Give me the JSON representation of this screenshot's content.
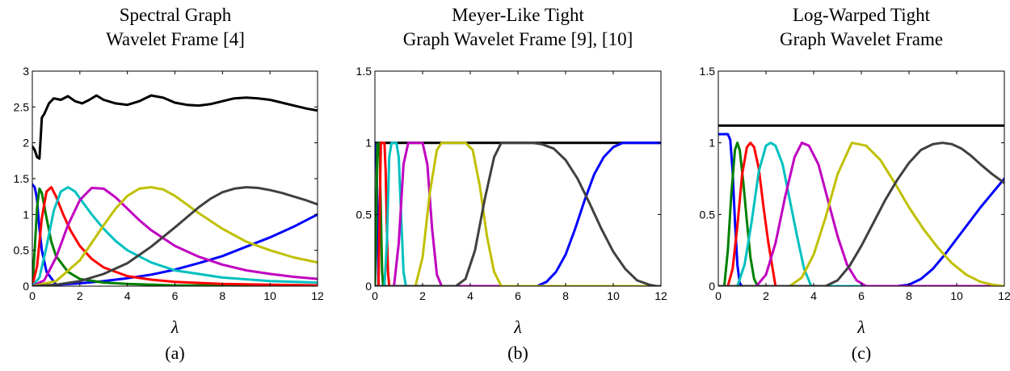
{
  "chart_data": [
    {
      "type": "line",
      "title_lines": [
        "Spectral Graph",
        "Wavelet Frame [4]"
      ],
      "xlabel": "λ",
      "caption": "(a)",
      "xlim": [
        0,
        12
      ],
      "ylim": [
        0,
        3
      ],
      "xticks": [
        0,
        2,
        4,
        6,
        8,
        10,
        12
      ],
      "yticks": [
        0,
        0.5,
        1,
        1.5,
        2,
        2.5,
        3
      ],
      "series": [
        {
          "color": "#000000",
          "x": [
            0,
            0.1,
            0.2,
            0.3,
            0.4,
            0.5,
            0.7,
            0.9,
            1.2,
            1.5,
            1.8,
            2.1,
            2.4,
            2.7,
            3.0,
            3.5,
            4.0,
            4.5,
            5.0,
            5.5,
            6.0,
            6.5,
            7.0,
            7.5,
            8.0,
            8.5,
            9.0,
            9.5,
            10.0,
            10.5,
            11.0,
            11.5,
            12.0
          ],
          "y": [
            1.95,
            1.9,
            1.8,
            1.78,
            2.35,
            2.4,
            2.55,
            2.62,
            2.6,
            2.65,
            2.58,
            2.55,
            2.6,
            2.66,
            2.6,
            2.55,
            2.53,
            2.58,
            2.66,
            2.63,
            2.56,
            2.53,
            2.52,
            2.54,
            2.58,
            2.62,
            2.63,
            2.62,
            2.6,
            2.56,
            2.52,
            2.48,
            2.45
          ]
        },
        {
          "color": "#0000ff",
          "x": [
            0,
            0.05,
            0.1,
            0.15,
            0.2,
            0.3,
            0.4,
            0.6,
            1,
            2,
            3,
            4,
            5,
            6,
            7,
            8,
            9,
            10,
            11,
            12
          ],
          "y": [
            1.42,
            1.4,
            1.38,
            1.3,
            1.2,
            0.8,
            0.5,
            0.2,
            0.02,
            0.04,
            0.07,
            0.11,
            0.16,
            0.23,
            0.32,
            0.42,
            0.55,
            0.68,
            0.83,
            1.0
          ]
        },
        {
          "color": "#008000",
          "x": [
            0,
            0.1,
            0.2,
            0.3,
            0.4,
            0.6,
            0.8,
            1,
            1.5,
            2,
            3,
            4,
            6,
            8,
            10,
            12
          ],
          "y": [
            0,
            0.5,
            1.1,
            1.36,
            1.3,
            0.95,
            0.62,
            0.42,
            0.2,
            0.1,
            0.05,
            0.03,
            0.01,
            0.01,
            0,
            0
          ]
        },
        {
          "color": "#ff0000",
          "x": [
            0,
            0.2,
            0.4,
            0.6,
            0.8,
            1.0,
            1.3,
            1.6,
            2,
            2.5,
            3,
            4,
            5,
            6,
            8,
            10,
            12
          ],
          "y": [
            0,
            0.28,
            0.95,
            1.32,
            1.38,
            1.25,
            1.0,
            0.78,
            0.56,
            0.38,
            0.26,
            0.14,
            0.09,
            0.06,
            0.03,
            0.02,
            0.01
          ]
        },
        {
          "color": "#00c0c0",
          "x": [
            0,
            0.3,
            0.6,
            0.9,
            1.2,
            1.5,
            1.8,
            2.1,
            2.5,
            3,
            3.5,
            4,
            5,
            6,
            8,
            10,
            12
          ],
          "y": [
            0,
            0.12,
            0.55,
            1.05,
            1.32,
            1.38,
            1.32,
            1.18,
            1.0,
            0.8,
            0.63,
            0.5,
            0.33,
            0.22,
            0.12,
            0.07,
            0.05
          ]
        },
        {
          "color": "#c000c0",
          "x": [
            0,
            0.5,
            1,
            1.5,
            2,
            2.5,
            3,
            3.5,
            4,
            4.5,
            5,
            6,
            7,
            8,
            9,
            10,
            11,
            12
          ],
          "y": [
            0,
            0.08,
            0.4,
            0.85,
            1.2,
            1.37,
            1.36,
            1.24,
            1.08,
            0.92,
            0.78,
            0.56,
            0.41,
            0.3,
            0.22,
            0.17,
            0.13,
            0.1
          ]
        },
        {
          "color": "#c0c000",
          "x": [
            0,
            1,
            2,
            3,
            3.5,
            4,
            4.5,
            5,
            5.5,
            6,
            7,
            8,
            9,
            10,
            11,
            12
          ],
          "y": [
            0,
            0.07,
            0.36,
            0.85,
            1.08,
            1.26,
            1.36,
            1.38,
            1.35,
            1.26,
            1.02,
            0.8,
            0.62,
            0.5,
            0.4,
            0.33
          ]
        },
        {
          "color": "#404040",
          "x": [
            0,
            1,
            2,
            3,
            4,
            5,
            6,
            7,
            7.5,
            8,
            8.5,
            9,
            9.5,
            10,
            10.5,
            11,
            11.5,
            12
          ],
          "y": [
            0,
            0.02,
            0.07,
            0.17,
            0.32,
            0.55,
            0.82,
            1.1,
            1.22,
            1.31,
            1.36,
            1.38,
            1.37,
            1.34,
            1.3,
            1.25,
            1.2,
            1.14
          ]
        }
      ]
    },
    {
      "type": "line",
      "title_lines": [
        "Meyer-Like Tight",
        "Graph Wavelet Frame [9], [10]"
      ],
      "xlabel": "λ",
      "caption": "(b)",
      "xlim": [
        0,
        12
      ],
      "ylim": [
        0,
        1.5
      ],
      "xticks": [
        0,
        2,
        4,
        6,
        8,
        10,
        12
      ],
      "yticks": [
        0,
        0.5,
        1,
        1.5
      ],
      "series": [
        {
          "color": "#000000",
          "x": [
            0,
            12
          ],
          "y": [
            1,
            1
          ]
        },
        {
          "color": "#0000ff",
          "x": [
            0,
            0.05,
            0.1,
            0.15,
            0.5,
            6.8,
            7.2,
            7.6,
            8.0,
            8.4,
            8.8,
            9.2,
            9.6,
            10.0,
            10.4,
            10.8,
            12
          ],
          "y": [
            1,
            1,
            0.6,
            0,
            0,
            0,
            0.03,
            0.1,
            0.22,
            0.4,
            0.6,
            0.78,
            0.9,
            0.97,
            1,
            1,
            1
          ]
        },
        {
          "color": "#008000",
          "x": [
            0,
            0.05,
            0.1,
            0.15,
            0.2,
            0.25,
            0.3,
            0.35,
            0.4,
            12
          ],
          "y": [
            0,
            0.4,
            1,
            1,
            0.9,
            0.5,
            0.1,
            0,
            0,
            0
          ]
        },
        {
          "color": "#ff0000",
          "x": [
            0,
            0.15,
            0.2,
            0.25,
            0.3,
            0.4,
            0.45,
            0.5,
            0.55,
            0.6,
            0.65,
            12
          ],
          "y": [
            0,
            0,
            0.5,
            1,
            1,
            1,
            0.8,
            0.4,
            0.1,
            0,
            0,
            0
          ]
        },
        {
          "color": "#00c0c0",
          "x": [
            0,
            0.4,
            0.5,
            0.6,
            0.7,
            0.9,
            1.0,
            1.1,
            1.2,
            1.3,
            12
          ],
          "y": [
            0,
            0,
            0.3,
            0.9,
            1,
            1,
            0.9,
            0.5,
            0.1,
            0,
            0
          ]
        },
        {
          "color": "#c000c0",
          "x": [
            0,
            0.8,
            1.0,
            1.2,
            1.4,
            2.0,
            2.2,
            2.4,
            2.6,
            2.8,
            12
          ],
          "y": [
            0,
            0,
            0.3,
            0.85,
            1,
            1,
            0.85,
            0.4,
            0.08,
            0,
            0
          ]
        },
        {
          "color": "#c0c000",
          "x": [
            0,
            1.7,
            2.0,
            2.3,
            2.6,
            2.8,
            3.8,
            4.1,
            4.4,
            4.7,
            5.0,
            5.3,
            12
          ],
          "y": [
            0,
            0,
            0.2,
            0.65,
            0.95,
            1,
            1,
            0.95,
            0.7,
            0.35,
            0.1,
            0,
            0
          ]
        },
        {
          "color": "#404040",
          "x": [
            0,
            3.4,
            3.8,
            4.2,
            4.6,
            5.0,
            5.3,
            6.0,
            6.6,
            7.0,
            7.5,
            8.0,
            8.5,
            9.0,
            9.5,
            10.0,
            10.5,
            11.0,
            11.5,
            11.8,
            12
          ],
          "y": [
            0,
            0,
            0.05,
            0.25,
            0.6,
            0.9,
            1,
            1,
            1,
            0.99,
            0.96,
            0.88,
            0.75,
            0.58,
            0.4,
            0.24,
            0.12,
            0.04,
            0.01,
            0,
            0
          ]
        }
      ]
    },
    {
      "type": "line",
      "title_lines": [
        "Log-Warped Tight",
        "Graph Wavelet Frame"
      ],
      "xlabel": "λ",
      "caption": "(c)",
      "xlim": [
        0,
        12
      ],
      "ylim": [
        0,
        1.5
      ],
      "xticks": [
        0,
        2,
        4,
        6,
        8,
        10,
        12
      ],
      "yticks": [
        0,
        0.5,
        1,
        1.5
      ],
      "series": [
        {
          "color": "#000000",
          "x": [
            0,
            12
          ],
          "y": [
            1.12,
            1.12
          ]
        },
        {
          "color": "#0000ff",
          "x": [
            0,
            0.4,
            0.5,
            0.6,
            0.7,
            0.8,
            0.9,
            1.0,
            7.5,
            8.0,
            8.5,
            9.0,
            9.5,
            10.0,
            10.5,
            11.0,
            11.5,
            12
          ],
          "y": [
            1.06,
            1.06,
            1.02,
            0.8,
            0.45,
            0.15,
            0.02,
            0,
            0,
            0.01,
            0.05,
            0.12,
            0.22,
            0.33,
            0.44,
            0.55,
            0.65,
            0.75
          ]
        },
        {
          "color": "#008000",
          "x": [
            0,
            0.25,
            0.4,
            0.55,
            0.7,
            0.8,
            0.9,
            1.05,
            1.2,
            1.35,
            1.5,
            1.65,
            12
          ],
          "y": [
            0,
            0,
            0.25,
            0.65,
            0.95,
            1.0,
            0.95,
            0.72,
            0.45,
            0.2,
            0.05,
            0,
            0
          ]
        },
        {
          "color": "#ff0000",
          "x": [
            0,
            0.4,
            0.6,
            0.8,
            1.0,
            1.2,
            1.35,
            1.5,
            1.7,
            1.9,
            2.1,
            2.4,
            12
          ],
          "y": [
            0,
            0,
            0.12,
            0.42,
            0.78,
            0.97,
            1.0,
            0.97,
            0.82,
            0.55,
            0.3,
            0,
            0
          ]
        },
        {
          "color": "#00c0c0",
          "x": [
            0,
            0.8,
            1.1,
            1.4,
            1.7,
            2.0,
            2.2,
            2.4,
            2.7,
            3.0,
            3.3,
            3.6,
            3.9,
            12
          ],
          "y": [
            0,
            0,
            0.15,
            0.45,
            0.8,
            0.98,
            1.0,
            0.98,
            0.85,
            0.6,
            0.35,
            0.12,
            0,
            0
          ]
        },
        {
          "color": "#c000c0",
          "x": [
            0,
            1.6,
            2.0,
            2.4,
            2.8,
            3.2,
            3.5,
            3.8,
            4.2,
            4.6,
            5.0,
            5.4,
            5.8,
            6.2,
            12
          ],
          "y": [
            0,
            0,
            0.08,
            0.3,
            0.62,
            0.9,
            1.0,
            0.98,
            0.85,
            0.6,
            0.35,
            0.15,
            0.04,
            0,
            0
          ]
        },
        {
          "color": "#c0c000",
          "x": [
            0,
            3.0,
            3.5,
            4.0,
            4.5,
            5.0,
            5.6,
            6.2,
            6.8,
            7.4,
            8.0,
            8.6,
            9.2,
            9.8,
            10.4,
            11.0,
            11.5,
            12
          ],
          "y": [
            0,
            0,
            0.06,
            0.22,
            0.48,
            0.78,
            1.0,
            0.98,
            0.88,
            0.72,
            0.55,
            0.4,
            0.27,
            0.16,
            0.08,
            0.03,
            0.01,
            0
          ]
        },
        {
          "color": "#404040",
          "x": [
            0,
            4.5,
            5.0,
            5.5,
            6.0,
            6.5,
            7.0,
            7.5,
            8.0,
            8.5,
            9.0,
            9.4,
            9.8,
            10.2,
            10.6,
            11.0,
            11.5,
            12
          ],
          "y": [
            0,
            0,
            0.04,
            0.14,
            0.28,
            0.44,
            0.6,
            0.74,
            0.86,
            0.95,
            0.99,
            1.0,
            0.99,
            0.96,
            0.91,
            0.85,
            0.78,
            0.72
          ]
        }
      ]
    }
  ]
}
